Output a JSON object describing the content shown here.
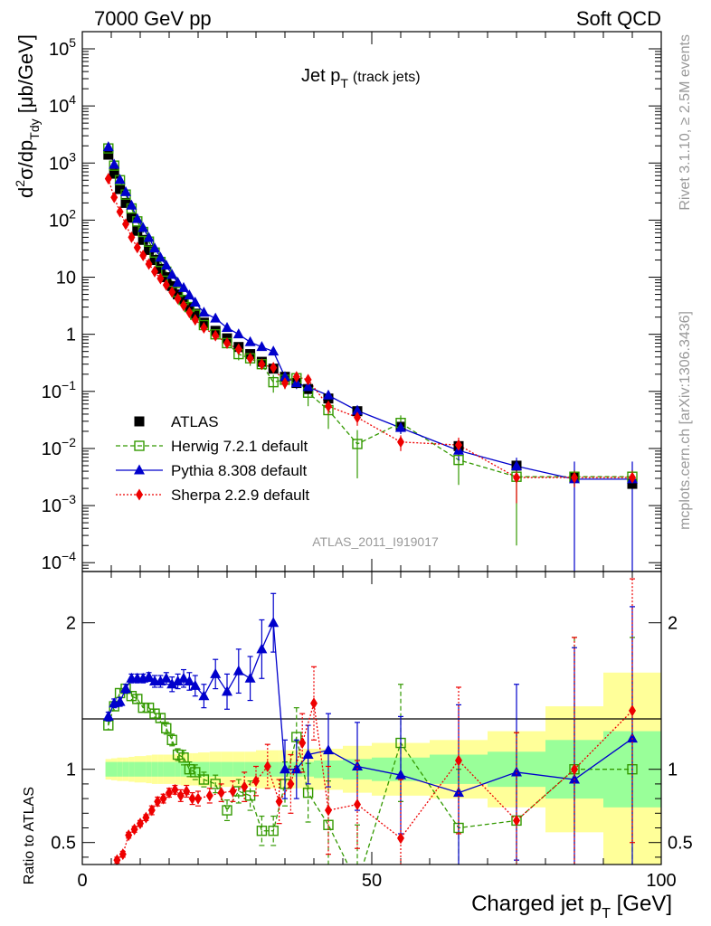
{
  "header": {
    "left": "7000 GeV pp",
    "right": "Soft QCD"
  },
  "side_labels": {
    "rivet": "Rivet 3.1.10, ≥ 2.5M events",
    "mcplots": "mcplots.cern.ch [arXiv:1306.3436]"
  },
  "chart_data": [
    {
      "type": "scatter",
      "panel": "main",
      "title_main": "Jet p",
      "title_sub": "T",
      "title_note": "(track jets)",
      "ylabel": "d²σ/dp_Tdy [μb/GeV]",
      "ylabel_parts": {
        "d": "d",
        "sup": "2",
        "mid": "σ/dp",
        "sub": "Tdy",
        "unit": " [μb/GeV]"
      },
      "yscale": "log",
      "xlim": [
        0,
        100
      ],
      "ylim": [
        7e-05,
        200000
      ],
      "ytick_labels": [
        {
          "value": 100000,
          "base": "10",
          "exp": "5"
        },
        {
          "value": 10000,
          "base": "10",
          "exp": "4"
        },
        {
          "value": 1000,
          "base": "10",
          "exp": "3"
        },
        {
          "value": 100,
          "base": "10",
          "exp": "2"
        },
        {
          "value": 10,
          "base": "10",
          "exp": ""
        },
        {
          "value": 1,
          "base": "1",
          "exp": ""
        },
        {
          "value": 0.1,
          "base": "10",
          "exp": "−1"
        },
        {
          "value": 0.01,
          "base": "10",
          "exp": "−2"
        },
        {
          "value": 0.001,
          "base": "10",
          "exp": "−3"
        },
        {
          "value": 0.0001,
          "base": "10",
          "exp": "−4"
        }
      ],
      "watermark": "ATLAS_2011_I919017",
      "legend_position": "bottom-left",
      "data": {
        "name": "ATLAS",
        "x": [
          4.5,
          5.5,
          6.5,
          7.5,
          8.5,
          9.5,
          10.5,
          11.5,
          12.5,
          13.5,
          14.5,
          15.5,
          16.5,
          17.5,
          18.5,
          19.5,
          21,
          23,
          25,
          27,
          29,
          31,
          33,
          35,
          37,
          39,
          42.5,
          47.5,
          55,
          65,
          75,
          85,
          95
        ],
        "y": [
          1400,
          650,
          350,
          200,
          110,
          65,
          45,
          30,
          20,
          14,
          10,
          7,
          5,
          4,
          3,
          2.3,
          1.6,
          1.15,
          0.85,
          0.6,
          0.45,
          0.33,
          0.25,
          0.18,
          0.14,
          0.11,
          0.075,
          0.045,
          0.024,
          0.011,
          0.005,
          0.0031,
          0.0024
        ]
      },
      "series": [
        {
          "name": "Herwig 7.2.1 default",
          "color": "#339900",
          "marker": "open-square",
          "line": "dashed",
          "x": [
            4.5,
            5.5,
            6.5,
            7.5,
            8.5,
            9.5,
            10.5,
            11.5,
            12.5,
            13.5,
            14.5,
            15.5,
            16.5,
            17.5,
            18.5,
            19.5,
            21,
            23,
            25,
            27,
            29,
            31,
            33,
            35,
            37,
            39,
            42.5,
            47.5,
            55,
            65,
            75,
            85,
            95
          ],
          "y": [
            1800,
            900,
            500,
            280,
            160,
            95,
            62,
            42,
            27,
            18.5,
            12.5,
            8.3,
            5.5,
            4,
            3,
            2.2,
            1.45,
            1,
            0.7,
            0.45,
            0.38,
            0.3,
            0.145,
            0.16,
            0.17,
            0.095,
            0.047,
            0.012,
            0.028,
            0.0063,
            0.0032,
            0.0032,
            0.0032
          ],
          "y_err": [
            40,
            20,
            10,
            5,
            3,
            2,
            1.5,
            1,
            0.6,
            0.4,
            0.4,
            0.3,
            0.2,
            0.3,
            0.2,
            0.2,
            0.2,
            0.1,
            0.1,
            0.1,
            0.1,
            0.06,
            0.05,
            0.05,
            0.04,
            0.04,
            0.025,
            0.009,
            0.01,
            0.004,
            0.003,
            0.001,
            0.001
          ]
        },
        {
          "name": "Pythia 8.308 default",
          "color": "#0000cc",
          "marker": "filled-triangle",
          "line": "solid",
          "x": [
            4.5,
            5.5,
            6.5,
            7.5,
            8.5,
            9.5,
            10.5,
            11.5,
            12.5,
            13.5,
            14.5,
            15.5,
            16.5,
            17.5,
            18.5,
            19.5,
            21,
            23,
            25,
            27,
            29,
            31,
            33,
            35,
            37,
            39,
            42.5,
            47.5,
            55,
            65,
            75,
            85,
            95
          ],
          "y": [
            1900,
            940,
            510,
            310,
            180,
            105,
            73,
            49,
            32,
            22,
            16,
            11,
            8,
            6.5,
            4.8,
            3.6,
            2.4,
            1.9,
            1.3,
            1,
            0.73,
            0.6,
            0.5,
            0.18,
            0.14,
            0.12,
            0.085,
            0.046,
            0.023,
            0.0092,
            0.0049,
            0.0029,
            0.0029
          ],
          "y_err": [
            40,
            20,
            10,
            6,
            4,
            2.5,
            1.8,
            1.2,
            0.8,
            0.6,
            0.5,
            0.4,
            0.3,
            0.3,
            0.3,
            0.2,
            0.2,
            0.15,
            0.12,
            0.1,
            0.08,
            0.06,
            0.05,
            0.04,
            0.03,
            0.02,
            0.015,
            0.01,
            0.005,
            0.003,
            0.002,
            0.003,
            0.003
          ]
        },
        {
          "name": "Sherpa 2.2.9 default",
          "color": "#ee0000",
          "marker": "filled-diamond",
          "line": "dotted",
          "x": [
            4.5,
            5.5,
            6.5,
            7.5,
            8.5,
            9.5,
            10.5,
            11.5,
            12.5,
            13.5,
            14.5,
            15.5,
            16.5,
            17.5,
            18.5,
            19.5,
            21,
            23,
            25,
            27,
            29,
            31,
            33,
            35,
            37,
            39,
            42.5,
            47.5,
            55,
            65,
            75,
            85,
            95
          ],
          "y": [
            530,
            250,
            140,
            85,
            50,
            33,
            24,
            17,
            12.5,
            9.5,
            7.3,
            5.5,
            4.2,
            3.2,
            2.4,
            1.8,
            1.3,
            0.95,
            0.7,
            0.55,
            0.38,
            0.3,
            0.26,
            0.14,
            0.18,
            0.16,
            0.055,
            0.035,
            0.013,
            0.0115,
            0.0031,
            0.0031,
            0.0031
          ],
          "y_err": [
            10,
            5,
            3,
            2,
            1.2,
            0.8,
            0.6,
            0.4,
            0.3,
            0.3,
            0.2,
            0.2,
            0.2,
            0.2,
            0.15,
            0.1,
            0.1,
            0.08,
            0.06,
            0.05,
            0.04,
            0.04,
            0.04,
            0.03,
            0.03,
            0.02,
            0.015,
            0.01,
            0.004,
            0.004,
            0.002,
            0.001,
            0.001
          ]
        }
      ]
    },
    {
      "type": "line",
      "panel": "ratio",
      "ylabel": "Ratio to ATLAS",
      "xlabel": "Charged jet p",
      "xlabel_sub": "T",
      "xlabel_unit": " [GeV]",
      "xlim": [
        0,
        100
      ],
      "ylim": [
        0.35,
        2.35
      ],
      "xtick_labels": [
        {
          "value": 0,
          "label": "0"
        },
        {
          "value": 50,
          "label": "50"
        },
        {
          "value": 100,
          "label": "100"
        }
      ],
      "ytick_labels": [
        {
          "value": 0.5,
          "label": "0.5"
        },
        {
          "value": 1,
          "label": "1"
        },
        {
          "value": 2,
          "label": "2"
        }
      ],
      "uncertainty_bands": {
        "x_edges": [
          4,
          5,
          6,
          7,
          8,
          9,
          10,
          11,
          12,
          13,
          14,
          15,
          16,
          17,
          18,
          19,
          20,
          22,
          24,
          26,
          28,
          30,
          32,
          34,
          36,
          38,
          40,
          45,
          50,
          60,
          70,
          80,
          90,
          100
        ],
        "stat_half": [
          0.05,
          0.05,
          0.05,
          0.05,
          0.05,
          0.05,
          0.05,
          0.05,
          0.05,
          0.05,
          0.05,
          0.05,
          0.05,
          0.05,
          0.05,
          0.05,
          0.05,
          0.05,
          0.05,
          0.05,
          0.05,
          0.05,
          0.05,
          0.05,
          0.05,
          0.05,
          0.06,
          0.07,
          0.08,
          0.1,
          0.12,
          0.2,
          0.26
        ],
        "total_half": [
          0.07,
          0.075,
          0.08,
          0.08,
          0.085,
          0.09,
          0.09,
          0.095,
          0.1,
          0.1,
          0.1,
          0.1,
          0.105,
          0.11,
          0.11,
          0.11,
          0.115,
          0.12,
          0.12,
          0.12,
          0.12,
          0.13,
          0.13,
          0.13,
          0.13,
          0.14,
          0.14,
          0.16,
          0.18,
          0.2,
          0.26,
          0.43,
          0.66
        ],
        "stat_color": "#99ff99",
        "total_color": "#ffff99"
      },
      "series": [
        {
          "name": "Herwig 7.2.1 default",
          "color": "#339900",
          "x": [
            4.5,
            5.5,
            6.5,
            7.5,
            8.5,
            9.5,
            10.5,
            11.5,
            12.5,
            13.5,
            14.5,
            15.5,
            16.5,
            17.5,
            18.5,
            19.5,
            21,
            23,
            25,
            27,
            29,
            31,
            33,
            35,
            37,
            39,
            42.5,
            47.5,
            55,
            65,
            75,
            85,
            95
          ],
          "y": [
            1.3,
            1.43,
            1.52,
            1.55,
            1.5,
            1.48,
            1.42,
            1.42,
            1.38,
            1.35,
            1.28,
            1.2,
            1.1,
            1.08,
            1.0,
            0.98,
            0.93,
            0.9,
            0.72,
            0.85,
            0.82,
            0.58,
            0.58,
            0.9,
            1.22,
            0.84,
            0.62,
            0.22,
            1.18,
            0.6,
            0.65,
            1.0,
            1.0
          ],
          "y_err": [
            0.03,
            0.03,
            0.03,
            0.03,
            0.03,
            0.03,
            0.03,
            0.03,
            0.03,
            0.03,
            0.04,
            0.04,
            0.04,
            0.05,
            0.05,
            0.05,
            0.05,
            0.06,
            0.07,
            0.08,
            0.1,
            0.1,
            0.1,
            0.15,
            0.2,
            0.2,
            0.3,
            0.4,
            0.4,
            0.4,
            0.6,
            0.9,
            0.9
          ]
        },
        {
          "name": "Pythia 8.308 default",
          "color": "#0000cc",
          "x": [
            4.5,
            5.5,
            6.5,
            7.5,
            8.5,
            9.5,
            10.5,
            11.5,
            12.5,
            13.5,
            14.5,
            15.5,
            16.5,
            17.5,
            18.5,
            19.5,
            21,
            23,
            25,
            27,
            29,
            31,
            33,
            35,
            37,
            39,
            42.5,
            47.5,
            55,
            65,
            75,
            85,
            95
          ],
          "y": [
            1.36,
            1.45,
            1.46,
            1.55,
            1.62,
            1.62,
            1.62,
            1.63,
            1.6,
            1.6,
            1.62,
            1.58,
            1.6,
            1.62,
            1.6,
            1.57,
            1.5,
            1.65,
            1.53,
            1.67,
            1.62,
            1.82,
            2.0,
            1.0,
            1.0,
            1.1,
            1.13,
            1.02,
            0.96,
            0.84,
            0.98,
            0.93,
            1.21
          ],
          "y_err": [
            0.03,
            0.03,
            0.03,
            0.03,
            0.03,
            0.03,
            0.03,
            0.03,
            0.04,
            0.04,
            0.04,
            0.05,
            0.05,
            0.06,
            0.06,
            0.07,
            0.08,
            0.1,
            0.12,
            0.15,
            0.15,
            0.2,
            0.2,
            0.2,
            0.2,
            0.2,
            0.25,
            0.3,
            0.4,
            0.6,
            0.6,
            0.9,
            0.9
          ]
        },
        {
          "name": "Sherpa 2.2.9 default",
          "color": "#ee0000",
          "x": [
            6,
            7,
            8,
            9,
            10,
            11,
            12,
            13,
            14,
            15,
            16,
            17,
            18,
            19,
            20,
            22,
            24,
            26,
            28,
            30,
            32,
            34,
            36,
            38,
            40,
            42.5,
            47.5,
            55,
            65,
            75,
            85,
            95
          ],
          "y": [
            0.38,
            0.42,
            0.55,
            0.59,
            0.63,
            0.67,
            0.72,
            0.78,
            0.8,
            0.84,
            0.86,
            0.82,
            0.85,
            0.8,
            0.8,
            0.82,
            0.84,
            0.85,
            0.88,
            0.92,
            1.02,
            0.78,
            0.9,
            1.18,
            1.45,
            0.72,
            0.76,
            0.53,
            1.06,
            0.65,
            1.0,
            1.4
          ],
          "y_err": [
            0.02,
            0.02,
            0.02,
            0.02,
            0.02,
            0.02,
            0.03,
            0.03,
            0.03,
            0.03,
            0.03,
            0.04,
            0.04,
            0.04,
            0.05,
            0.05,
            0.06,
            0.07,
            0.1,
            0.1,
            0.15,
            0.15,
            0.2,
            0.2,
            0.25,
            0.3,
            0.3,
            0.4,
            0.5,
            0.6,
            0.9,
            0.9
          ]
        }
      ]
    }
  ]
}
